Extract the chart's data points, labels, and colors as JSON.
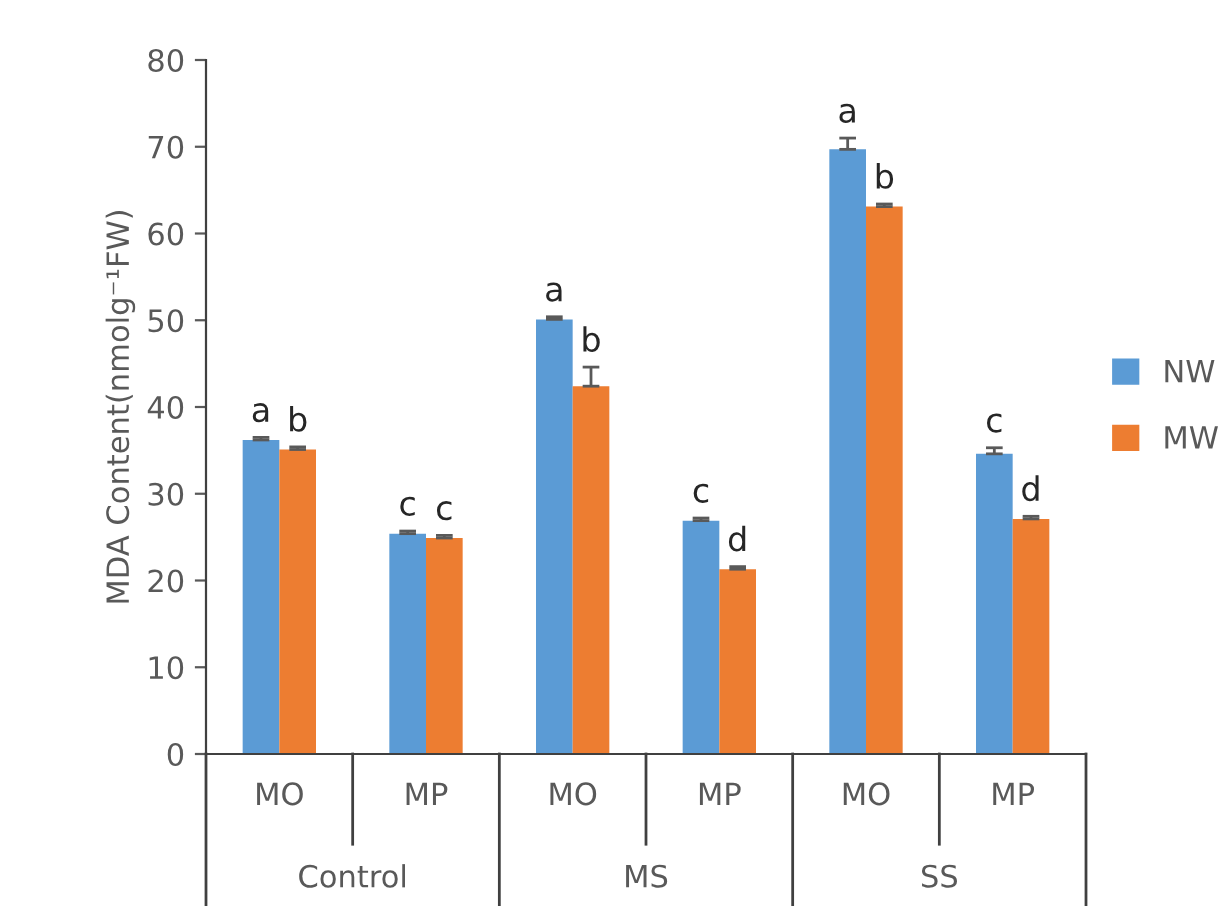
{
  "chart_data": {
    "type": "bar",
    "ylabel": "MDA Content(nmolg⁻¹FW)",
    "categories": [
      "MO",
      "MP",
      "MO",
      "MP",
      "MO",
      "MP"
    ],
    "annotations": [
      "Control",
      "MS",
      "SS"
    ],
    "series": [
      {
        "name": "NW",
        "color": "#5b9bd5",
        "values": [
          36.2,
          25.4,
          50.1,
          26.9,
          69.7,
          34.6
        ],
        "errors": [
          0.3,
          0.3,
          0.3,
          0.3,
          1.3,
          0.7
        ],
        "value_labels": [
          "a",
          "c",
          "a",
          "c",
          "a",
          "c"
        ]
      },
      {
        "name": "MW",
        "color": "#ed7d31",
        "values": [
          35.1,
          24.9,
          42.4,
          21.3,
          63.1,
          27.1
        ],
        "errors": [
          0.3,
          0.3,
          2.2,
          0.3,
          0.3,
          0.3
        ],
        "value_labels": [
          "b",
          "c",
          "b",
          "d",
          "b",
          "d"
        ]
      }
    ],
    "ylim": [
      0,
      80
    ],
    "yticks": [
      0,
      10,
      20,
      30,
      40,
      50,
      60,
      70,
      80
    ],
    "legend": "right",
    "grid": false
  }
}
